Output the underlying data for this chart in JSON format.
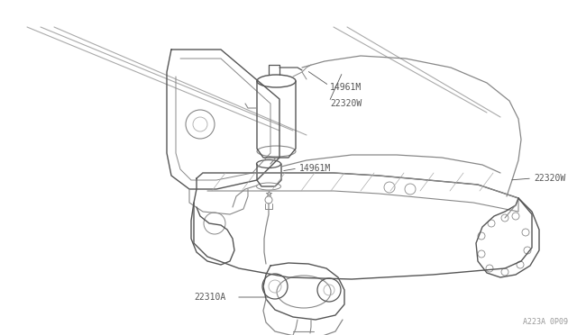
{
  "bg_color": "#ffffff",
  "line_color": "#aaaaaa",
  "line_color_mid": "#888888",
  "line_color_dark": "#555555",
  "text_color": "#555555",
  "fig_width": 6.4,
  "fig_height": 3.72,
  "dpi": 100,
  "watermark": "A223A 0P09",
  "labels": {
    "14961M_top": "14961M",
    "22320W_top": "22320W",
    "14961M_mid": "14961M",
    "22320W_right": "22320W",
    "22310A": "22310A"
  }
}
